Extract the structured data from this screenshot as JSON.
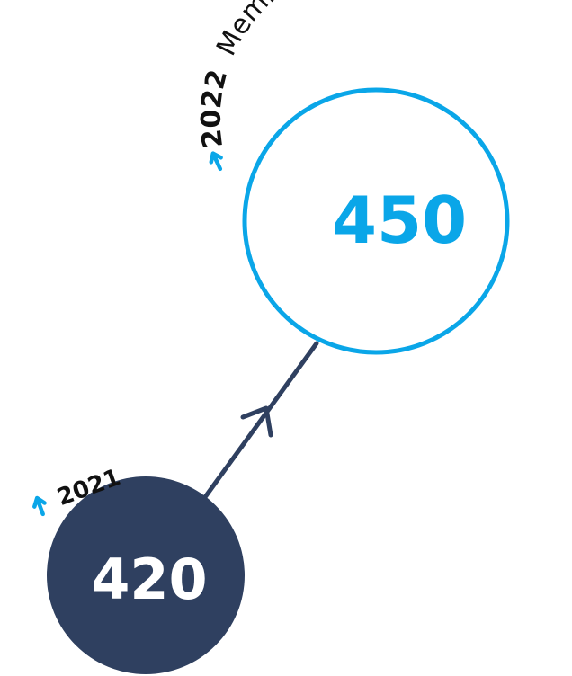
{
  "colors": {
    "navy": "#2f4060",
    "accent": "#0aa6e8",
    "background": "#ffffff",
    "arrow_icon": "#0aa6e8"
  },
  "icons": {
    "year_2021_arrow": "arrow-up-icon",
    "year_2022_arrow": "arrow-up-icon",
    "connector_arrow": "chevron-up-icon"
  },
  "nodes": {
    "year_2021": {
      "year": "2021",
      "value": "420"
    },
    "year_2022": {
      "year": "2022",
      "label": "Memberships",
      "value": "450"
    }
  }
}
